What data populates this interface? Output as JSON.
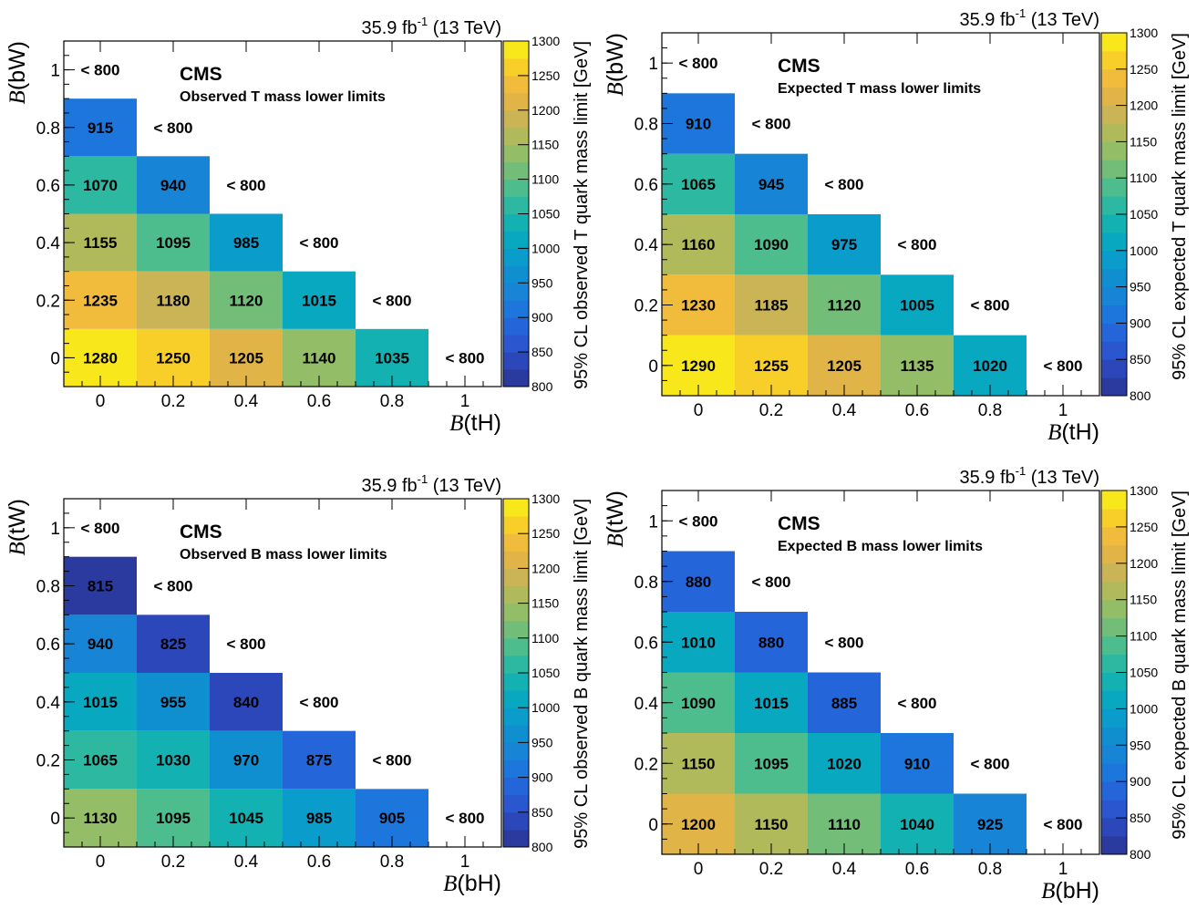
{
  "chart_data": [
    {
      "type": "heatmap",
      "lumi": "35.9 fb",
      "lumi_sup": "-1",
      "energy": "(13 TeV)",
      "experiment": "CMS",
      "subtitle": "Observed T mass lower limits",
      "xlabel_sym": "B",
      "xlabel_arg": "(tH)",
      "ylabel_sym": "B",
      "ylabel_arg": "(bW)",
      "zlabel": "95% CL observed T quark mass limit [GeV]",
      "x_ticks": [
        "0",
        "0.2",
        "0.4",
        "0.6",
        "0.8",
        "1"
      ],
      "y_ticks": [
        "0",
        "0.2",
        "0.4",
        "0.6",
        "0.8",
        "1"
      ],
      "z_ticks": [
        "800",
        "850",
        "900",
        "950",
        "1000",
        "1050",
        "1100",
        "1150",
        "1200",
        "1250",
        "1300"
      ],
      "zlim": [
        800,
        1300
      ],
      "below_label": "< 800",
      "rows": [
        {
          "y": 0,
          "values": [
            1280,
            1250,
            1205,
            1140,
            1035
          ]
        },
        {
          "y": 0.2,
          "values": [
            1235,
            1180,
            1120,
            1015
          ]
        },
        {
          "y": 0.4,
          "values": [
            1155,
            1095,
            985
          ]
        },
        {
          "y": 0.6,
          "values": [
            1070,
            940
          ]
        },
        {
          "y": 0.8,
          "values": [
            915
          ]
        },
        {
          "y": 1,
          "values": []
        }
      ]
    },
    {
      "type": "heatmap",
      "lumi": "35.9 fb",
      "lumi_sup": "-1",
      "energy": "(13 TeV)",
      "experiment": "CMS",
      "subtitle": "Expected T mass lower limits",
      "xlabel_sym": "B",
      "xlabel_arg": "(tH)",
      "ylabel_sym": "B",
      "ylabel_arg": "(bW)",
      "zlabel": "95% CL expected T quark mass limit [GeV]",
      "x_ticks": [
        "0",
        "0.2",
        "0.4",
        "0.6",
        "0.8",
        "1"
      ],
      "y_ticks": [
        "0",
        "0.2",
        "0.4",
        "0.6",
        "0.8",
        "1"
      ],
      "z_ticks": [
        "800",
        "850",
        "900",
        "950",
        "1000",
        "1050",
        "1100",
        "1150",
        "1200",
        "1250",
        "1300"
      ],
      "zlim": [
        800,
        1300
      ],
      "below_label": "< 800",
      "rows": [
        {
          "y": 0,
          "values": [
            1290,
            1255,
            1205,
            1135,
            1020
          ]
        },
        {
          "y": 0.2,
          "values": [
            1230,
            1185,
            1120,
            1005
          ]
        },
        {
          "y": 0.4,
          "values": [
            1160,
            1090,
            975
          ]
        },
        {
          "y": 0.6,
          "values": [
            1065,
            945
          ]
        },
        {
          "y": 0.8,
          "values": [
            910
          ]
        },
        {
          "y": 1,
          "values": []
        }
      ]
    },
    {
      "type": "heatmap",
      "lumi": "35.9 fb",
      "lumi_sup": "-1",
      "energy": "(13 TeV)",
      "experiment": "CMS",
      "subtitle": "Observed B mass lower limits",
      "xlabel_sym": "B",
      "xlabel_arg": "(bH)",
      "ylabel_sym": "B",
      "ylabel_arg": "(tW)",
      "zlabel": "95% CL observed B quark mass limit [GeV]",
      "x_ticks": [
        "0",
        "0.2",
        "0.4",
        "0.6",
        "0.8",
        "1"
      ],
      "y_ticks": [
        "0",
        "0.2",
        "0.4",
        "0.6",
        "0.8",
        "1"
      ],
      "z_ticks": [
        "800",
        "850",
        "900",
        "950",
        "1000",
        "1050",
        "1100",
        "1150",
        "1200",
        "1250",
        "1300"
      ],
      "zlim": [
        800,
        1300
      ],
      "below_label": "< 800",
      "rows": [
        {
          "y": 0,
          "values": [
            1130,
            1095,
            1045,
            985,
            905
          ]
        },
        {
          "y": 0.2,
          "values": [
            1065,
            1030,
            970,
            875
          ]
        },
        {
          "y": 0.4,
          "values": [
            1015,
            955,
            840
          ]
        },
        {
          "y": 0.6,
          "values": [
            940,
            825
          ]
        },
        {
          "y": 0.8,
          "values": [
            815
          ]
        },
        {
          "y": 1,
          "values": []
        }
      ]
    },
    {
      "type": "heatmap",
      "lumi": "35.9 fb",
      "lumi_sup": "-1",
      "energy": "(13 TeV)",
      "experiment": "CMS",
      "subtitle": "Expected B mass lower limits",
      "xlabel_sym": "B",
      "xlabel_arg": "(bH)",
      "ylabel_sym": "B",
      "ylabel_arg": "(tW)",
      "zlabel": "95% CL expected B quark mass limit [GeV]",
      "x_ticks": [
        "0",
        "0.2",
        "0.4",
        "0.6",
        "0.8",
        "1"
      ],
      "y_ticks": [
        "0",
        "0.2",
        "0.4",
        "0.6",
        "0.8",
        "1"
      ],
      "z_ticks": [
        "800",
        "850",
        "900",
        "950",
        "1000",
        "1050",
        "1100",
        "1150",
        "1200",
        "1250",
        "1300"
      ],
      "zlim": [
        800,
        1300
      ],
      "below_label": "< 800",
      "rows": [
        {
          "y": 0,
          "values": [
            1200,
            1150,
            1110,
            1040,
            925
          ]
        },
        {
          "y": 0.2,
          "values": [
            1150,
            1095,
            1020,
            910
          ]
        },
        {
          "y": 0.4,
          "values": [
            1090,
            1015,
            885
          ]
        },
        {
          "y": 0.6,
          "values": [
            1010,
            880
          ]
        },
        {
          "y": 0.8,
          "values": [
            880
          ]
        },
        {
          "y": 1,
          "values": []
        }
      ]
    }
  ]
}
